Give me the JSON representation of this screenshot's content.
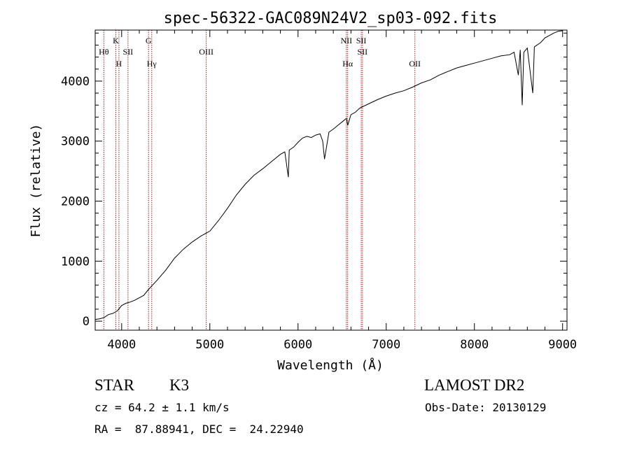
{
  "chart_data": {
    "type": "line",
    "title": "spec-56322-GAC089N24V2_sp03-092.fits",
    "xlabel": "Wavelength (Å)",
    "ylabel": "Flux (relative)",
    "xlim": [
      3700,
      9050
    ],
    "ylim": [
      -150,
      4850
    ],
    "xticks": [
      4000,
      5000,
      6000,
      7000,
      8000,
      9000
    ],
    "yticks": [
      0,
      1000,
      2000,
      3000,
      4000
    ],
    "grid": false,
    "line_color": "#000000",
    "marker_color": "#b22222",
    "spectral_lines": [
      {
        "name": "Hθ",
        "wavelength": 3798,
        "row": 2
      },
      {
        "name": "K",
        "wavelength": 3934,
        "row": 1
      },
      {
        "name": "H",
        "wavelength": 3969,
        "row": 3
      },
      {
        "name": "SII",
        "wavelength": 4072,
        "row": 2
      },
      {
        "name": "G",
        "wavelength": 4305,
        "row": 1
      },
      {
        "name": "Hγ",
        "wavelength": 4341,
        "row": 3
      },
      {
        "name": "OIII",
        "wavelength": 4959,
        "row": 2
      },
      {
        "name": "NII",
        "wavelength": 6548,
        "row": 1
      },
      {
        "name": "Hα",
        "wavelength": 6563,
        "row": 3
      },
      {
        "name": "SII",
        "wavelength": 6717,
        "row": 1
      },
      {
        "name": "SII",
        "wavelength": 6731,
        "row": 2
      },
      {
        "name": "OII",
        "wavelength": 7325,
        "row": 3
      }
    ],
    "spectrum": {
      "x": [
        3700,
        3750,
        3800,
        3850,
        3900,
        3950,
        4000,
        4050,
        4100,
        4150,
        4200,
        4250,
        4300,
        4350,
        4400,
        4500,
        4600,
        4700,
        4800,
        4900,
        5000,
        5100,
        5200,
        5300,
        5400,
        5500,
        5600,
        5700,
        5800,
        5850,
        5890,
        5900,
        5950,
        6000,
        6050,
        6100,
        6150,
        6200,
        6250,
        6280,
        6300,
        6350,
        6400,
        6450,
        6500,
        6550,
        6563,
        6600,
        6650,
        6700,
        6800,
        6900,
        7000,
        7100,
        7200,
        7300,
        7400,
        7500,
        7600,
        7700,
        7800,
        7900,
        8000,
        8100,
        8200,
        8300,
        8400,
        8450,
        8498,
        8520,
        8542,
        8560,
        8600,
        8662,
        8680,
        8700,
        8750,
        8800,
        8850,
        8900,
        8950,
        9000
      ],
      "y": [
        30,
        40,
        60,
        110,
        130,
        170,
        260,
        300,
        320,
        350,
        390,
        430,
        520,
        600,
        680,
        850,
        1050,
        1200,
        1320,
        1420,
        1500,
        1680,
        1880,
        2100,
        2280,
        2430,
        2540,
        2660,
        2780,
        2820,
        2400,
        2850,
        2900,
        2980,
        3050,
        3080,
        3060,
        3100,
        3120,
        3000,
        2700,
        3150,
        3200,
        3260,
        3320,
        3380,
        3260,
        3440,
        3480,
        3550,
        3620,
        3690,
        3750,
        3800,
        3840,
        3900,
        3970,
        4020,
        4100,
        4160,
        4220,
        4260,
        4300,
        4340,
        4380,
        4420,
        4440,
        4480,
        4100,
        4520,
        3600,
        4480,
        4550,
        3800,
        4570,
        4590,
        4640,
        4720,
        4760,
        4800,
        4830,
        4840
      ]
    }
  },
  "info": {
    "object_type": "STAR",
    "subclass": "K3",
    "survey": "LAMOST DR2",
    "redshift": "cz = 64.2 ± 1.1 km/s",
    "obs_date": "Obs-Date: 20130129",
    "coordinates": "RA =  87.88941, DEC =  24.22940"
  }
}
